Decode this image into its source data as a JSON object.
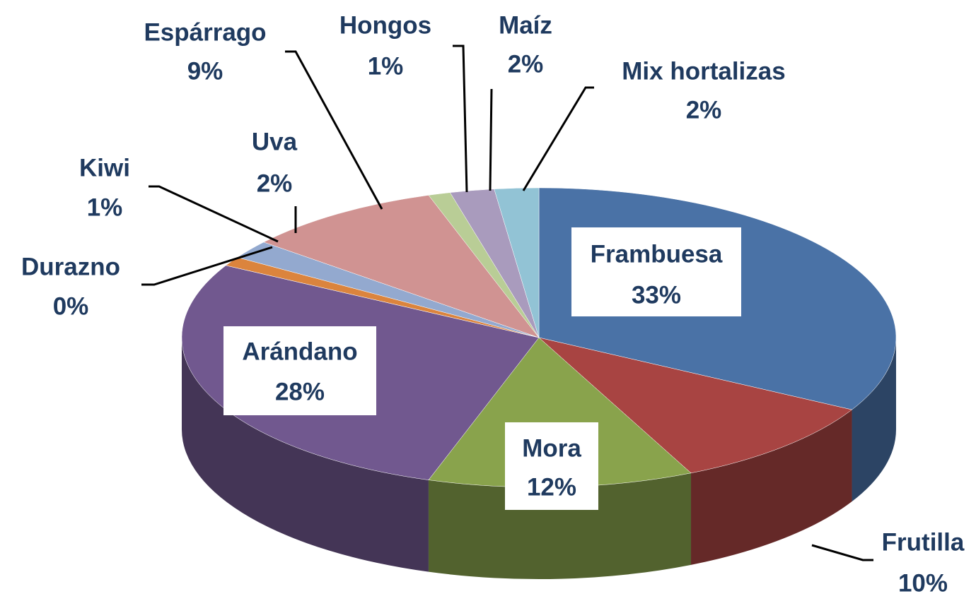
{
  "chart_data": {
    "type": "pie3d",
    "categories": [
      "Frambuesa",
      "Frutilla",
      "Mora",
      "Arándano",
      "Durazno",
      "Kiwi",
      "Uva",
      "Espárrago",
      "Hongos",
      "Maíz",
      "Mix hortalizas"
    ],
    "values": [
      33,
      10,
      12,
      28,
      0,
      1,
      2,
      9,
      1,
      2,
      2
    ],
    "value_labels": [
      "33%",
      "10%",
      "12%",
      "28%",
      "0%",
      "1%",
      "2%",
      "9%",
      "1%",
      "2%",
      "2%"
    ],
    "colors": [
      "#4a72a6",
      "#a84442",
      "#89a34c",
      "#71588f",
      "#4198af",
      "#db843d",
      "#93a9cf",
      "#d09392",
      "#b9cd96",
      "#a99bbd",
      "#92c3d5"
    ]
  }
}
